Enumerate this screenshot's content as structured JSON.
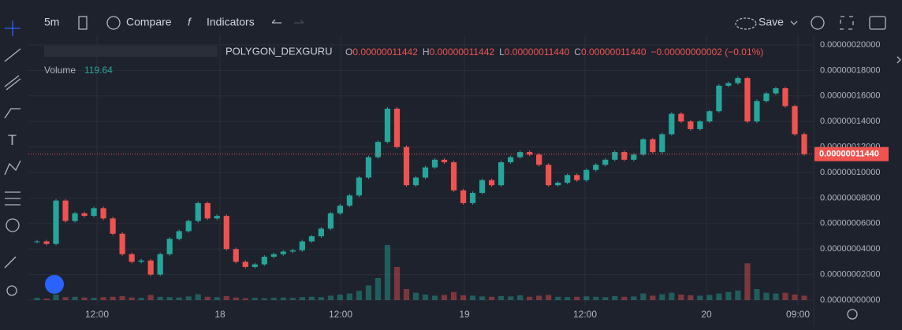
{
  "toolbar": {
    "interval": "5m",
    "compare": "Compare",
    "indicators": "Indicators",
    "save": "Save"
  },
  "legend": {
    "symbol": "POLYGON_DEXGURU",
    "ohlc": [
      {
        "key": "O",
        "value": "0.00000011442"
      },
      {
        "key": "H",
        "value": "0.00000011442"
      },
      {
        "key": "L",
        "value": "0.00000011440"
      },
      {
        "key": "C",
        "value": "0.00000011440"
      }
    ],
    "change": "−0.00000000002 (−0.01%)",
    "volume_title": "Volume"
  },
  "chart_data": {
    "type": "candlestick",
    "close": [
      4.6e-08,
      4.4e-08,
      7.8e-08,
      6.2e-08,
      6.8e-08,
      6.6e-08,
      7.2e-08,
      6.4e-08,
      5.2e-08,
      3.6e-08,
      3e-08,
      3.1e-08,
      2e-08,
      3.6e-08,
      4.8e-08,
      5.4e-08,
      6.2e-08,
      7.6e-08,
      6.4e-08,
      6.6e-08,
      4e-08,
      3e-08,
      2.6e-08,
      2.8e-08,
      3.4e-08,
      3.6e-08,
      3.8e-08,
      3.9e-08,
      4.6e-08,
      5e-08,
      5.6e-08,
      6.8e-08,
      7.4e-08,
      8.2e-08,
      9.6e-08,
      1.12e-07,
      1.24e-07,
      1.5e-07,
      1.2e-07,
      9e-08,
      9.6e-08,
      1.04e-07,
      1.1e-07,
      1.08e-07,
      8.6e-08,
      7.6e-08,
      8.4e-08,
      9.4e-08,
      9e-08,
      1.08e-07,
      1.12e-07,
      1.16e-07,
      1.14e-07,
      1.06e-07,
      9e-08,
      9.2e-08,
      9.8e-08,
      9.4e-08,
      1.02e-07,
      1.06e-07,
      1.1e-07,
      1.16e-07,
      1.1e-07,
      1.14e-07,
      1.26e-07,
      1.16e-07,
      1.3e-07,
      1.46e-07,
      1.4e-07,
      1.34e-07,
      1.4e-07,
      1.48e-07,
      1.68e-07,
      1.7e-07,
      1.74e-07,
      1.4e-07,
      1.56e-07,
      1.62e-07,
      1.66e-07,
      1.52e-07,
      1.3e-07,
      1.144e-07
    ],
    "volume": [
      60,
      40,
      150,
      80,
      90,
      70,
      60,
      80,
      90,
      110,
      70,
      60,
      140,
      90,
      80,
      70,
      100,
      160,
      90,
      80,
      110,
      70,
      50,
      60,
      50,
      60,
      70,
      60,
      80,
      90,
      80,
      120,
      150,
      180,
      250,
      400,
      600,
      1500,
      900,
      300,
      200,
      150,
      120,
      140,
      220,
      130,
      120,
      100,
      90,
      110,
      100,
      130,
      90,
      120,
      140,
      90,
      80,
      90,
      100,
      90,
      80,
      110,
      90,
      100,
      180,
      120,
      160,
      200,
      150,
      130,
      120,
      140,
      180,
      220,
      260,
      1000,
      300,
      200,
      180,
      200,
      150,
      119.64
    ],
    "up_color": "#26a69a",
    "down_color": "#ef5350",
    "ylim": [
      -4.3e-09,
      2.074e-07
    ],
    "yticks": [
      {
        "value": 0,
        "label": "0.00000000000"
      },
      {
        "value": 2e-08,
        "label": "0.00000002000"
      },
      {
        "value": 4e-08,
        "label": "0.00000004000"
      },
      {
        "value": 6e-08,
        "label": "0.00000006000"
      },
      {
        "value": 8e-08,
        "label": "0.00000008000"
      },
      {
        "value": 1e-07,
        "label": "0.00000010000"
      },
      {
        "value": 1.2e-07,
        "label": "0.00000012000"
      },
      {
        "value": 1.4e-07,
        "label": "0.00000014000"
      },
      {
        "value": 1.6e-07,
        "label": "0.00000016000"
      },
      {
        "value": 1.8e-07,
        "label": "0.00000018000"
      },
      {
        "value": 2e-07,
        "label": "0.00000020000"
      }
    ],
    "last_price": {
      "value": 1.144e-07,
      "label": "0.00000011440"
    },
    "x_labels": [
      "12:00",
      "18",
      "12:00",
      "19",
      "12:00",
      "20",
      "09:00"
    ],
    "grid": true
  }
}
